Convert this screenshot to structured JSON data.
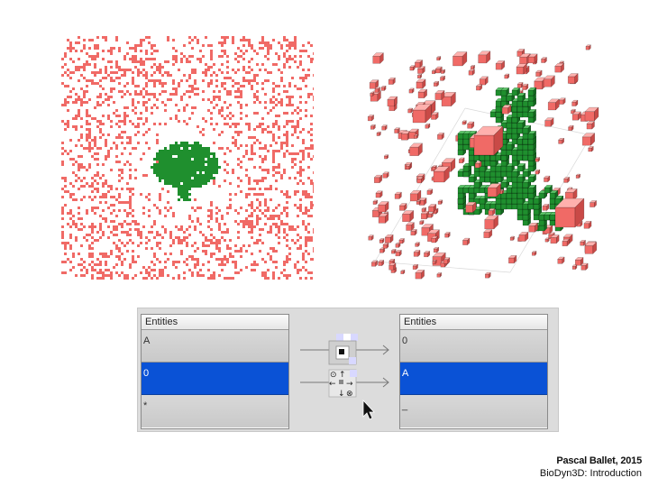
{
  "colors": {
    "particle_red": "#f06a66",
    "cell_green": "#1f8f2e",
    "selection_blue": "#0a52d6"
  },
  "tables": {
    "left": {
      "header": "Entities",
      "rows": [
        {
          "label": "A",
          "selected": false
        },
        {
          "label": "0",
          "selected": true
        },
        {
          "label": "*",
          "selected": false
        }
      ]
    },
    "right": {
      "header": "Entities",
      "rows": [
        {
          "label": "0",
          "selected": false
        },
        {
          "label": "A",
          "selected": true
        },
        {
          "label": "_",
          "selected": false
        }
      ]
    }
  },
  "rule_icons": [
    "neighbor-cell-icon",
    "direction-arrows-icon",
    "arrow-right-icon",
    "mouse-cursor-icon"
  ],
  "caption": {
    "author": "Pascal Ballet, 2015",
    "subtitle": "BioDyn3D: Introduction"
  }
}
